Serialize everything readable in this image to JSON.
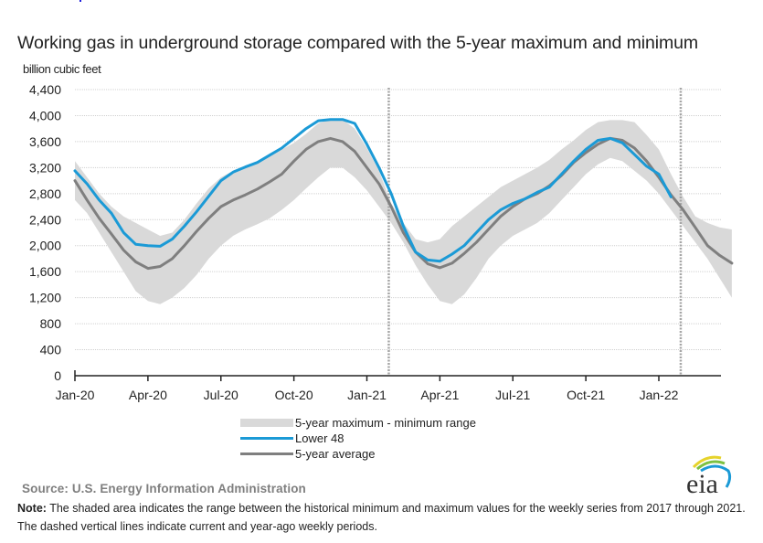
{
  "title": "Working gas in underground  storage compared with the 5-year maximum  and minimum",
  "unit_label": "billion cubic feet",
  "legend": {
    "range": "5-year maximum - minimum range",
    "lower48": "Lower 48",
    "avg": "5-year average"
  },
  "source": "Source:  U.S. Energy Information Administration",
  "note_label": "Note:",
  "note_text": " The shaded area indicates the range between the historical minimum and maximum values for the weekly series from 2017 through 2021. The dashed vertical lines indicate current and year-ago weekly periods.",
  "logo_text": "eia",
  "colors": {
    "lower48": "#1b9ad6",
    "avg": "#7f7f7f",
    "range": "#d9d9d9",
    "grid": "#d0d0d0"
  },
  "chart_data": {
    "type": "line",
    "title": "Working gas in underground storage compared with the 5-year maximum and minimum",
    "ylabel": "billion cubic feet",
    "xlabel": "",
    "ylim": [
      0,
      4400
    ],
    "yticks": [
      0,
      400,
      800,
      1200,
      1600,
      2000,
      2400,
      2800,
      3200,
      3600,
      4000,
      4400
    ],
    "ytick_labels": [
      "0",
      "400",
      "800",
      "1,200",
      "1,600",
      "2,000",
      "2,400",
      "2,800",
      "3,200",
      "3,600",
      "4,000",
      "4,400"
    ],
    "x_unit": "months since Jan-2020",
    "xlim": [
      0,
      28.8
    ],
    "xticks": [
      0,
      3,
      6,
      9,
      12,
      15,
      18,
      21,
      24
    ],
    "xtick_labels": [
      "Jan-20",
      "Apr-20",
      "Jul-20",
      "Oct-20",
      "Jan-21",
      "Apr-21",
      "Jul-21",
      "Oct-21",
      "Jan-22"
    ],
    "grid": true,
    "legend_position": "bottom-center",
    "dashed_markers": [
      {
        "label": "year-ago week",
        "x": 12.9
      },
      {
        "label": "current week",
        "x": 24.9
      }
    ],
    "x": [
      0,
      0.5,
      1,
      1.5,
      2,
      2.5,
      3,
      3.5,
      4,
      4.5,
      5,
      5.5,
      6,
      6.5,
      7,
      7.5,
      8,
      8.5,
      9,
      9.5,
      10,
      10.5,
      11,
      11.5,
      12,
      12.5,
      13,
      13.5,
      14,
      14.5,
      15,
      15.5,
      16,
      16.5,
      17,
      17.5,
      18,
      18.5,
      19,
      19.5,
      20,
      20.5,
      21,
      21.5,
      22,
      22.5,
      23,
      23.5,
      24,
      24.5,
      25,
      25.5,
      26,
      26.5,
      27,
      27.5,
      28,
      28.5
    ],
    "series": [
      {
        "name": "5-year maximum",
        "values": [
          3300,
          3050,
          2800,
          2600,
          2450,
          2350,
          2250,
          2150,
          2200,
          2400,
          2650,
          2880,
          3050,
          3150,
          3230,
          3300,
          3380,
          3480,
          3580,
          3720,
          3880,
          3940,
          3940,
          3800,
          3500,
          3150,
          2650,
          2350,
          2100,
          2050,
          2100,
          2300,
          2450,
          2600,
          2750,
          2900,
          3000,
          3100,
          3200,
          3320,
          3480,
          3620,
          3780,
          3900,
          3930,
          3930,
          3900,
          3700,
          3480,
          3100,
          2750,
          2450,
          2350,
          2280,
          2250,
          null,
          null,
          null
        ]
      },
      {
        "name": "5-year minimum",
        "values": [
          2700,
          2500,
          2200,
          1900,
          1600,
          1300,
          1150,
          1100,
          1200,
          1350,
          1550,
          1800,
          2000,
          2150,
          2250,
          2330,
          2420,
          2550,
          2700,
          2880,
          3050,
          3200,
          3200,
          3050,
          2850,
          2600,
          2350,
          2050,
          1700,
          1400,
          1150,
          1100,
          1250,
          1500,
          1800,
          2000,
          2150,
          2250,
          2350,
          2500,
          2700,
          2900,
          3100,
          3250,
          3350,
          3300,
          3150,
          3000,
          2800,
          2550,
          2300,
          2050,
          1800,
          1500,
          1200,
          null,
          null,
          null
        ]
      },
      {
        "name": "Lower 48",
        "values": [
          3150,
          2950,
          2700,
          2500,
          2200,
          2020,
          2000,
          1990,
          2100,
          2300,
          2520,
          2760,
          3000,
          3130,
          3210,
          3280,
          3390,
          3500,
          3650,
          3800,
          3920,
          3940,
          3940,
          3880,
          3560,
          3200,
          2800,
          2300,
          1900,
          1780,
          1760,
          1870,
          2000,
          2200,
          2400,
          2550,
          2650,
          2720,
          2820,
          2900,
          3100,
          3300,
          3480,
          3620,
          3650,
          3580,
          3400,
          3220,
          3100,
          2750,
          null,
          null,
          null,
          null,
          null,
          null,
          null,
          null
        ]
      },
      {
        "name": "5-year average",
        "values": [
          3000,
          2700,
          2420,
          2180,
          1930,
          1750,
          1650,
          1680,
          1800,
          2000,
          2220,
          2420,
          2600,
          2700,
          2780,
          2870,
          2980,
          3100,
          3300,
          3480,
          3600,
          3650,
          3600,
          3450,
          3200,
          2950,
          2600,
          2200,
          1900,
          1720,
          1660,
          1730,
          1880,
          2050,
          2250,
          2450,
          2600,
          2720,
          2800,
          2920,
          3080,
          3280,
          3430,
          3560,
          3650,
          3620,
          3500,
          3300,
          3050,
          2780,
          2550,
          2280,
          2000,
          1850,
          1730,
          null,
          null,
          null
        ]
      }
    ]
  }
}
